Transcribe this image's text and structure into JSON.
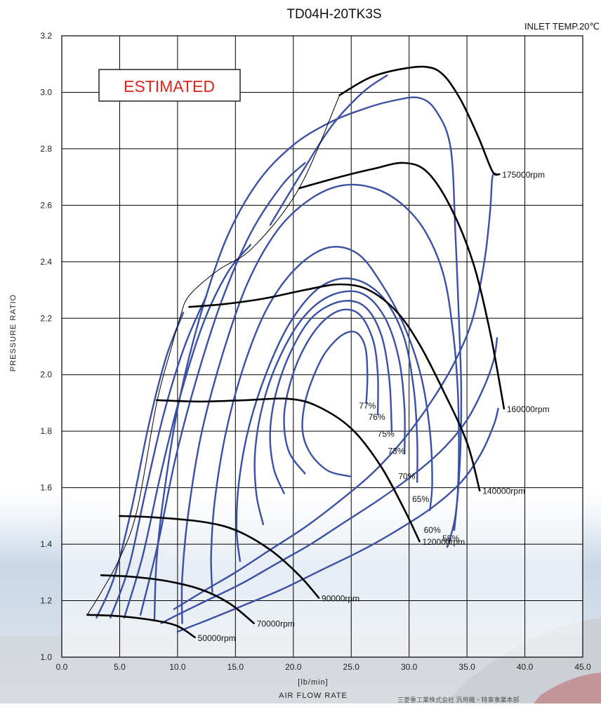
{
  "chart_data": {
    "type": "line",
    "title": "TD04H-20TK3S",
    "subtitle": "INLET TEMP.20℃",
    "stamp": "ESTIMATED",
    "xlabel_unit": "[lb/min]",
    "xlabel": "AIR FLOW RATE",
    "ylabel": "PRESSURE RATIO",
    "xlim": [
      0,
      45
    ],
    "ylim": [
      1.0,
      3.2
    ],
    "x_ticks": [
      "0.0",
      "5.0",
      "10.0",
      "15.0",
      "20.0",
      "25.0",
      "30.0",
      "35.0",
      "40.0",
      "45.0"
    ],
    "y_ticks": [
      "1.0",
      "1.2",
      "1.4",
      "1.6",
      "1.8",
      "2.0",
      "2.2",
      "2.4",
      "2.6",
      "2.8",
      "3.0",
      "3.2"
    ],
    "grid": true,
    "colors": {
      "efficiency": "#3a50a5",
      "speed": "#000000",
      "stamp": "#e0231b"
    },
    "surge_line": [
      [
        2.2,
        1.15
      ],
      [
        3.4,
        1.23
      ],
      [
        5.0,
        1.35
      ],
      [
        6.5,
        1.52
      ],
      [
        8.2,
        1.9
      ],
      [
        9.5,
        2.1
      ],
      [
        10.2,
        2.2
      ],
      [
        11.0,
        2.28
      ],
      [
        13.5,
        2.37
      ],
      [
        16.5,
        2.45
      ],
      [
        20.5,
        2.66
      ],
      [
        24,
        2.99
      ]
    ],
    "speed_lines": [
      {
        "name": "50000rpm",
        "points": [
          [
            2.2,
            1.15
          ],
          [
            5.0,
            1.145
          ],
          [
            8.0,
            1.13
          ],
          [
            10.0,
            1.11
          ],
          [
            11.5,
            1.07
          ]
        ]
      },
      {
        "name": "70000rpm",
        "points": [
          [
            3.4,
            1.29
          ],
          [
            6.0,
            1.285
          ],
          [
            9.0,
            1.27
          ],
          [
            12.0,
            1.24
          ],
          [
            14.5,
            1.19
          ],
          [
            16.6,
            1.12
          ]
        ]
      },
      {
        "name": "90000rpm",
        "points": [
          [
            5.0,
            1.5
          ],
          [
            8.0,
            1.495
          ],
          [
            12.0,
            1.48
          ],
          [
            15.0,
            1.45
          ],
          [
            18.0,
            1.38
          ],
          [
            20.5,
            1.29
          ],
          [
            22.2,
            1.21
          ]
        ]
      },
      {
        "name": "120000rpm",
        "points": [
          [
            8.2,
            1.91
          ],
          [
            12.0,
            1.905
          ],
          [
            16.0,
            1.91
          ],
          [
            19.5,
            1.915
          ],
          [
            22.0,
            1.89
          ],
          [
            25.0,
            1.81
          ],
          [
            27.5,
            1.68
          ],
          [
            29.5,
            1.53
          ],
          [
            30.9,
            1.41
          ]
        ]
      },
      {
        "name": "140000rpm",
        "points": [
          [
            11.0,
            2.24
          ],
          [
            14.0,
            2.25
          ],
          [
            17.5,
            2.27
          ],
          [
            21.0,
            2.3
          ],
          [
            24.0,
            2.32
          ],
          [
            26.5,
            2.3
          ],
          [
            29.0,
            2.22
          ],
          [
            31.0,
            2.1
          ],
          [
            33.0,
            1.94
          ],
          [
            35.0,
            1.76
          ],
          [
            36.1,
            1.59
          ]
        ]
      },
      {
        "name": "160000rpm",
        "points": [
          [
            20.5,
            2.66
          ],
          [
            24.0,
            2.7
          ],
          [
            27.0,
            2.73
          ],
          [
            29.5,
            2.75
          ],
          [
            31.5,
            2.72
          ],
          [
            33.5,
            2.6
          ],
          [
            35.5,
            2.4
          ],
          [
            37.0,
            2.15
          ],
          [
            38.2,
            1.88
          ]
        ]
      },
      {
        "name": "175000rpm",
        "points": [
          [
            24.0,
            2.99
          ],
          [
            26.5,
            3.05
          ],
          [
            29.0,
            3.08
          ],
          [
            31.5,
            3.09
          ],
          [
            33.0,
            3.06
          ],
          [
            34.5,
            2.97
          ],
          [
            36.0,
            2.84
          ],
          [
            37.2,
            2.72
          ],
          [
            37.8,
            2.71
          ]
        ]
      }
    ],
    "efficiency_islands": [
      {
        "name": "77%",
        "label_at": [
          26.4,
          1.88
        ],
        "points": [
          [
            24.9,
            1.64
          ],
          [
            23.0,
            1.66
          ],
          [
            21.5,
            1.72
          ],
          [
            20.8,
            1.8
          ],
          [
            21.0,
            1.9
          ],
          [
            21.8,
            2.0
          ],
          [
            22.8,
            2.08
          ],
          [
            24.2,
            2.14
          ],
          [
            25.4,
            2.15
          ],
          [
            26.2,
            2.1
          ],
          [
            26.4,
            2.0
          ],
          [
            26.3,
            1.9
          ]
        ]
      },
      {
        "name": "76%",
        "label_at": [
          27.2,
          1.84
        ],
        "points": [
          [
            21.0,
            1.65
          ],
          [
            19.6,
            1.73
          ],
          [
            19.2,
            1.85
          ],
          [
            19.8,
            1.98
          ],
          [
            21.0,
            2.1
          ],
          [
            22.6,
            2.19
          ],
          [
            24.3,
            2.23
          ],
          [
            25.8,
            2.21
          ],
          [
            26.9,
            2.12
          ],
          [
            27.3,
            2.0
          ],
          [
            27.3,
            1.86
          ]
        ]
      },
      {
        "name": "75%",
        "label_at": [
          28.0,
          1.78
        ],
        "points": [
          [
            19.2,
            1.58
          ],
          [
            18.3,
            1.67
          ],
          [
            18.0,
            1.8
          ],
          [
            18.6,
            1.95
          ],
          [
            20.0,
            2.1
          ],
          [
            21.8,
            2.21
          ],
          [
            24.2,
            2.26
          ],
          [
            26.2,
            2.24
          ],
          [
            27.6,
            2.14
          ],
          [
            28.3,
            1.98
          ],
          [
            28.5,
            1.8
          ]
        ]
      },
      {
        "name": "73%",
        "label_at": [
          28.9,
          1.72
        ],
        "points": [
          [
            17.4,
            1.47
          ],
          [
            16.8,
            1.58
          ],
          [
            16.7,
            1.73
          ],
          [
            17.4,
            1.9
          ],
          [
            18.8,
            2.06
          ],
          [
            20.8,
            2.2
          ],
          [
            23.2,
            2.28
          ],
          [
            25.8,
            2.29
          ],
          [
            27.8,
            2.21
          ],
          [
            29.1,
            2.06
          ],
          [
            29.6,
            1.88
          ],
          [
            29.6,
            1.72
          ]
        ]
      },
      {
        "name": "70%",
        "label_at": [
          29.8,
          1.63
        ],
        "points": [
          [
            15.4,
            1.34
          ],
          [
            15.1,
            1.45
          ],
          [
            15.3,
            1.62
          ],
          [
            16.2,
            1.82
          ],
          [
            17.8,
            2.02
          ],
          [
            19.8,
            2.19
          ],
          [
            22.3,
            2.31
          ],
          [
            25.0,
            2.34
          ],
          [
            27.6,
            2.28
          ],
          [
            29.5,
            2.14
          ],
          [
            30.4,
            1.95
          ],
          [
            30.7,
            1.77
          ],
          [
            30.7,
            1.62
          ]
        ]
      },
      {
        "name": "65%",
        "label_at": [
          31.0,
          1.55
        ],
        "points": [
          [
            13.0,
            1.23
          ],
          [
            12.9,
            1.36
          ],
          [
            13.2,
            1.55
          ],
          [
            14.2,
            1.8
          ],
          [
            15.8,
            2.04
          ],
          [
            17.8,
            2.24
          ],
          [
            20.3,
            2.38
          ],
          [
            23.0,
            2.45
          ],
          [
            25.5,
            2.43
          ],
          [
            27.5,
            2.33
          ],
          [
            29.5,
            2.18
          ],
          [
            31.0,
            2.0
          ],
          [
            31.8,
            1.8
          ],
          [
            32.0,
            1.62
          ],
          [
            31.8,
            1.52
          ]
        ]
      },
      {
        "name": "60%",
        "label_at": [
          32.0,
          1.44
        ],
        "points": [
          [
            10.4,
            1.12
          ],
          [
            10.4,
            1.28
          ],
          [
            10.9,
            1.5
          ],
          [
            12.0,
            1.78
          ],
          [
            13.8,
            2.06
          ],
          [
            16.0,
            2.32
          ],
          [
            18.6,
            2.51
          ],
          [
            21.4,
            2.62
          ],
          [
            24.2,
            2.67
          ],
          [
            27.0,
            2.66
          ],
          [
            29.5,
            2.6
          ],
          [
            31.5,
            2.5
          ],
          [
            33.0,
            2.35
          ],
          [
            33.8,
            2.15
          ],
          [
            34.2,
            1.95
          ],
          [
            34.3,
            1.75
          ],
          [
            34.2,
            1.58
          ],
          [
            33.9,
            1.45
          ]
        ]
      },
      {
        "name": "55%",
        "label_at": [
          33.6,
          1.41
        ],
        "points": [
          [
            8.0,
            1.13
          ],
          [
            8.2,
            1.35
          ],
          [
            8.9,
            1.6
          ],
          [
            10.1,
            1.9
          ],
          [
            11.9,
            2.2
          ],
          [
            14.2,
            2.48
          ],
          [
            16.9,
            2.68
          ],
          [
            19.9,
            2.81
          ],
          [
            23.0,
            2.89
          ],
          [
            26.0,
            2.94
          ],
          [
            28.6,
            2.97
          ],
          [
            30.9,
            2.98
          ],
          [
            32.4,
            2.93
          ],
          [
            33.6,
            2.8
          ],
          [
            34.0,
            2.5
          ],
          [
            34.3,
            2.2
          ],
          [
            34.5,
            1.95
          ],
          [
            34.4,
            1.7
          ],
          [
            34.0,
            1.5
          ],
          [
            33.3,
            1.39
          ]
        ]
      }
    ],
    "extra_efficiency_lines": [
      [
        [
          8.6,
          1.12
        ],
        [
          10.0,
          1.15
        ],
        [
          12.5,
          1.2
        ],
        [
          15.5,
          1.26
        ],
        [
          18.5,
          1.33
        ],
        [
          21.5,
          1.4
        ],
        [
          24.5,
          1.48
        ],
        [
          27.5,
          1.56
        ],
        [
          30.5,
          1.65
        ],
        [
          33.0,
          1.74
        ],
        [
          35.0,
          1.84
        ],
        [
          36.4,
          1.95
        ],
        [
          37.3,
          2.05
        ],
        [
          37.6,
          2.13
        ]
      ],
      [
        [
          10.0,
          1.09
        ],
        [
          12.5,
          1.13
        ],
        [
          15.5,
          1.18
        ],
        [
          19.0,
          1.24
        ],
        [
          22.5,
          1.31
        ],
        [
          26.0,
          1.38
        ],
        [
          29.0,
          1.45
        ],
        [
          32.0,
          1.53
        ],
        [
          34.5,
          1.62
        ],
        [
          36.2,
          1.72
        ],
        [
          37.3,
          1.82
        ],
        [
          37.7,
          1.88
        ]
      ],
      [
        [
          9.7,
          1.17
        ],
        [
          12.5,
          1.24
        ],
        [
          15.0,
          1.3
        ],
        [
          18.0,
          1.38
        ],
        [
          21.0,
          1.46
        ],
        [
          23.9,
          1.55
        ],
        [
          26.8,
          1.65
        ],
        [
          29.5,
          1.77
        ],
        [
          32.0,
          1.91
        ],
        [
          34.0,
          2.05
        ],
        [
          35.5,
          2.2
        ],
        [
          36.5,
          2.4
        ],
        [
          37.0,
          2.58
        ],
        [
          37.2,
          2.7
        ],
        [
          37.6,
          2.71
        ]
      ],
      [
        [
          3.0,
          1.14
        ],
        [
          4.5,
          1.28
        ],
        [
          6.0,
          1.52
        ],
        [
          7.5,
          1.82
        ],
        [
          9.0,
          2.06
        ],
        [
          10.5,
          2.22
        ]
      ],
      [
        [
          4.2,
          1.14
        ],
        [
          5.8,
          1.32
        ],
        [
          7.2,
          1.58
        ],
        [
          8.8,
          1.86
        ],
        [
          10.6,
          2.1
        ],
        [
          12.5,
          2.28
        ]
      ],
      [
        [
          5.4,
          1.14
        ],
        [
          7.0,
          1.36
        ],
        [
          8.5,
          1.64
        ],
        [
          10.2,
          1.92
        ],
        [
          12.2,
          2.18
        ],
        [
          14.3,
          2.36
        ],
        [
          16.3,
          2.46
        ]
      ],
      [
        [
          6.8,
          1.15
        ],
        [
          8.3,
          1.4
        ],
        [
          9.8,
          1.7
        ],
        [
          11.6,
          1.98
        ],
        [
          13.8,
          2.26
        ],
        [
          16.3,
          2.5
        ],
        [
          19.0,
          2.67
        ],
        [
          21.0,
          2.75
        ]
      ],
      [
        [
          18.0,
          2.53
        ],
        [
          20.5,
          2.7
        ],
        [
          23.3,
          2.88
        ],
        [
          26.0,
          3.0
        ],
        [
          28.1,
          3.06
        ]
      ]
    ]
  },
  "footer": "三菱重工業株式会社 汎用機・特車事業本部"
}
